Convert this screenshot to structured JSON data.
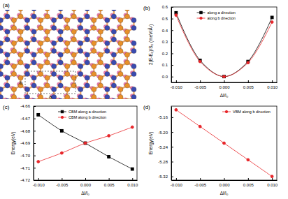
{
  "structure": {
    "title": "(a)",
    "axis_labels": [
      "a",
      "b"
    ]
  },
  "chart_data": [
    {
      "type": "line",
      "title": "(b)",
      "xlabel": "Δl/l₀",
      "ylabel": "2(E-E₀)/S₀ (meV/Å²)",
      "x": [
        -0.01,
        -0.005,
        0,
        0.005,
        0.01
      ],
      "xlim": [
        -0.011,
        0.011
      ],
      "xticks": [
        {
          "value": -0.01,
          "label": "-0.010"
        },
        -0.005,
        {
          "value": 0,
          "label": "0.000"
        },
        0.005,
        {
          "value": 0.01,
          "label": "0.010"
        }
      ],
      "ylim": [
        -0.05,
        0.6
      ],
      "yticks": [
        {
          "value": 0,
          "label": "0.0"
        },
        0.1,
        0.2,
        0.3,
        0.4,
        0.5,
        0.6
      ],
      "legend": "upper center",
      "series": [
        {
          "name": "along a direction",
          "color": "#000000",
          "marker": "square",
          "line_style": "solid",
          "values": [
            0.55,
            0.14,
            0.0,
            0.13,
            0.51
          ]
        },
        {
          "name": "along b direction",
          "color": "#e8262a",
          "marker": "circle",
          "line_style": "solid",
          "values": [
            0.53,
            0.13,
            0.0,
            0.12,
            0.47
          ]
        }
      ]
    },
    {
      "type": "line",
      "title": "(c)",
      "xlabel": "Δl/l₀",
      "ylabel": "Energy(eV)",
      "x": [
        -0.01,
        -0.005,
        0,
        0.005,
        0.01
      ],
      "xlim": [
        -0.011,
        0.011
      ],
      "xticks": [
        {
          "value": -0.01,
          "label": "-0.010"
        },
        -0.005,
        {
          "value": 0,
          "label": "0.000"
        },
        0.005,
        {
          "value": 0.01,
          "label": "0.010"
        }
      ],
      "ylim": [
        -4.72,
        -4.66
      ],
      "yticks": [
        -4.66,
        -4.67,
        -4.68,
        -4.69,
        {
          "value": -4.7,
          "label": "-4.70"
        },
        -4.71,
        -4.72
      ],
      "legend": "upper center",
      "series": [
        {
          "name": "CBM along a direction",
          "color": "#000000",
          "marker": "square",
          "line_style": "solid",
          "values": [
            -4.667,
            -4.68,
            -4.69,
            -4.701,
            -4.711
          ]
        },
        {
          "name": "CBM along b direction",
          "color": "#e8262a",
          "marker": "circle",
          "line_style": "solid",
          "values": [
            -4.705,
            -4.698,
            -4.69,
            -4.684,
            -4.677
          ]
        }
      ]
    },
    {
      "type": "line",
      "title": "(d)",
      "xlabel": "Δl/l₀",
      "ylabel": "Energy(eV)",
      "x": [
        -0.01,
        -0.005,
        0,
        0.005,
        0.01
      ],
      "xlim": [
        -0.011,
        0.011
      ],
      "xticks": [
        {
          "value": -0.01,
          "label": "-0.010"
        },
        -0.005,
        {
          "value": 0,
          "label": "0.000"
        },
        0.005,
        {
          "value": 0.01,
          "label": "0.010"
        }
      ],
      "ylim": [
        -5.33,
        -5.13
      ],
      "yticks": [
        -5.16,
        {
          "value": -5.2,
          "label": "-5.20"
        },
        -5.24,
        -5.28,
        -5.32
      ],
      "legend": "upper right",
      "series": [
        {
          "name": "VBM along b direction",
          "color": "#e8262a",
          "marker": "circle",
          "line_style": "solid",
          "values": [
            -5.14,
            -5.185,
            -5.23,
            -5.275,
            -5.32
          ]
        }
      ]
    }
  ]
}
